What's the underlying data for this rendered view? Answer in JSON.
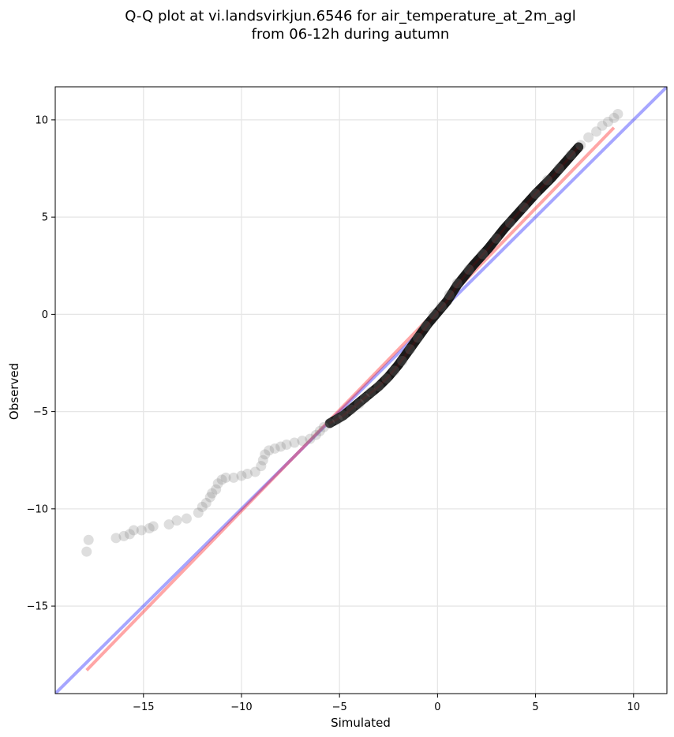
{
  "chart_data": {
    "type": "scatter",
    "title_line1": "Q-Q plot at vi.landsvirkjun.6546 for air_temperature_at_2m_agl",
    "title_line2": "from 06-12h during autumn",
    "xlabel": "Simulated",
    "ylabel": "Observed",
    "xlim": [
      -19.5,
      11.7
    ],
    "ylim": [
      -19.5,
      11.7
    ],
    "xticks": [
      -15,
      -10,
      -5,
      0,
      5,
      10
    ],
    "yticks": [
      -15,
      -10,
      -5,
      0,
      5,
      10
    ],
    "xtick_labels": [
      "−15",
      "−10",
      "−5",
      "0",
      "5",
      "10"
    ],
    "ytick_labels": [
      "−15",
      "−10",
      "−5",
      "0",
      "5",
      "10"
    ],
    "grid": true,
    "reference_lines": [
      {
        "kind": "identity",
        "color": "#0000ff",
        "x": [
          -19.5,
          11.7
        ],
        "y": [
          -19.5,
          11.7
        ]
      },
      {
        "kind": "fit",
        "color": "#ff0000",
        "x": [
          -17.9,
          9.0
        ],
        "y": [
          -18.3,
          9.6
        ]
      }
    ],
    "tail_points": [
      [
        -17.9,
        -12.2
      ],
      [
        -17.8,
        -11.6
      ],
      [
        -16.4,
        -11.5
      ],
      [
        -16.0,
        -11.4
      ],
      [
        -15.7,
        -11.3
      ],
      [
        -15.5,
        -11.1
      ],
      [
        -15.1,
        -11.1
      ],
      [
        -14.7,
        -11.0
      ],
      [
        -14.5,
        -10.9
      ],
      [
        -13.7,
        -10.8
      ],
      [
        -13.3,
        -10.6
      ],
      [
        -12.8,
        -10.5
      ],
      [
        -12.2,
        -10.2
      ],
      [
        -12.0,
        -9.9
      ],
      [
        -11.8,
        -9.7
      ],
      [
        -11.6,
        -9.4
      ],
      [
        -11.5,
        -9.2
      ],
      [
        -11.3,
        -9.0
      ],
      [
        -11.2,
        -8.7
      ],
      [
        -11.0,
        -8.5
      ],
      [
        -10.8,
        -8.4
      ],
      [
        -10.4,
        -8.4
      ],
      [
        -10.0,
        -8.3
      ],
      [
        -9.7,
        -8.2
      ],
      [
        -9.3,
        -8.1
      ],
      [
        -9.0,
        -7.8
      ],
      [
        -8.9,
        -7.5
      ],
      [
        -8.8,
        -7.2
      ],
      [
        -8.6,
        -7.0
      ],
      [
        -8.3,
        -6.9
      ],
      [
        -8.0,
        -6.8
      ],
      [
        -7.7,
        -6.7
      ],
      [
        -7.3,
        -6.6
      ],
      [
        -6.9,
        -6.5
      ],
      [
        -6.5,
        -6.4
      ],
      [
        -6.2,
        -6.2
      ],
      [
        -6.0,
        -6.0
      ],
      [
        -5.8,
        -5.8
      ],
      [
        -5.5,
        -5.6
      ],
      [
        -5.1,
        -5.4
      ],
      [
        -4.8,
        -5.2
      ],
      [
        -4.4,
        -4.9
      ],
      [
        -4.0,
        -4.6
      ],
      [
        -3.7,
        -4.3
      ],
      [
        -3.4,
        -4.0
      ],
      [
        -3.0,
        -3.7
      ],
      [
        -2.6,
        -3.3
      ],
      [
        -2.2,
        -2.9
      ],
      [
        -1.8,
        -2.4
      ],
      [
        -1.4,
        -1.8
      ],
      [
        -1.0,
        -1.2
      ],
      [
        -0.6,
        -0.6
      ],
      [
        -0.2,
        0.0
      ],
      [
        0.2,
        0.4
      ],
      [
        0.6,
        1.0
      ],
      [
        1.0,
        1.6
      ],
      [
        1.6,
        2.3
      ],
      [
        2.3,
        3.1
      ],
      [
        3.0,
        3.9
      ],
      [
        3.7,
        4.7
      ],
      [
        4.4,
        5.5
      ],
      [
        5.0,
        6.2
      ],
      [
        5.6,
        6.9
      ],
      [
        6.2,
        7.5
      ],
      [
        6.8,
        8.2
      ],
      [
        7.3,
        8.7
      ],
      [
        7.7,
        9.1
      ],
      [
        8.1,
        9.4
      ],
      [
        8.4,
        9.7
      ],
      [
        8.7,
        9.9
      ],
      [
        9.0,
        10.1
      ],
      [
        9.2,
        10.3
      ]
    ],
    "core_curve": [
      [
        -5.5,
        -5.6
      ],
      [
        -4.8,
        -5.2
      ],
      [
        -4.2,
        -4.7
      ],
      [
        -3.6,
        -4.2
      ],
      [
        -3.0,
        -3.7
      ],
      [
        -2.5,
        -3.2
      ],
      [
        -2.0,
        -2.6
      ],
      [
        -1.5,
        -1.9
      ],
      [
        -1.0,
        -1.2
      ],
      [
        -0.5,
        -0.5
      ],
      [
        0.0,
        0.1
      ],
      [
        0.5,
        0.7
      ],
      [
        1.0,
        1.5
      ],
      [
        1.8,
        2.5
      ],
      [
        2.6,
        3.4
      ],
      [
        3.4,
        4.4
      ],
      [
        4.2,
        5.3
      ],
      [
        5.0,
        6.2
      ],
      [
        5.8,
        7.0
      ],
      [
        6.5,
        7.8
      ],
      [
        7.2,
        8.6
      ]
    ]
  }
}
